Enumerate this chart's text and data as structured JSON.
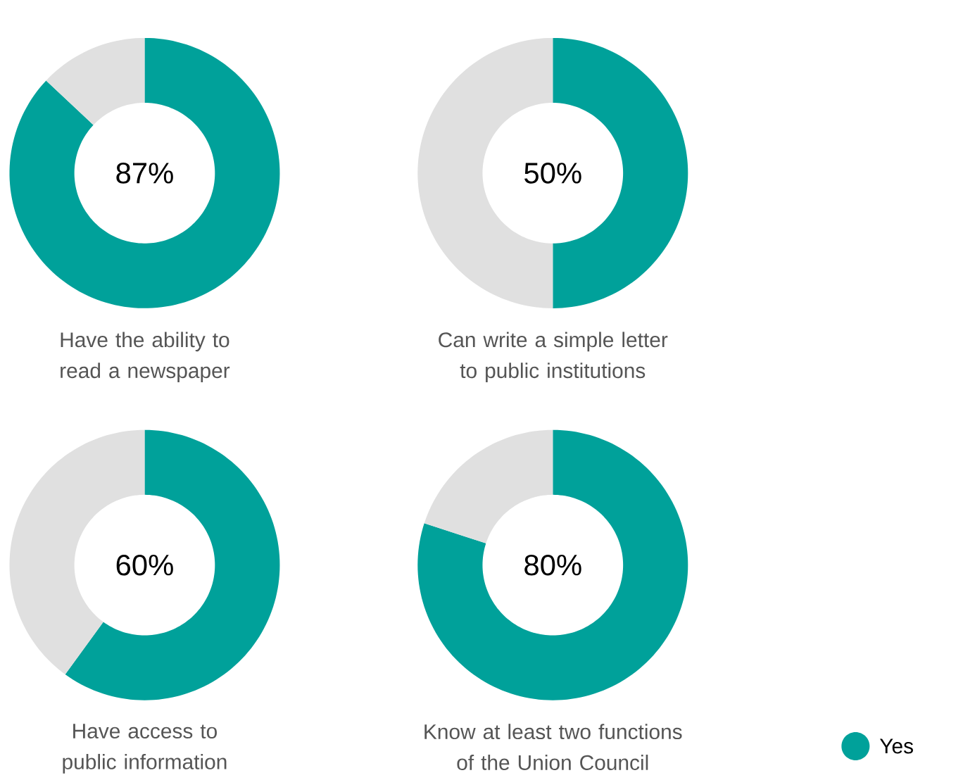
{
  "chart_data": [
    {
      "type": "donut",
      "title": "Have the ability to read a newspaper",
      "categories": [
        null,
        null
      ],
      "values": [
        87,
        13
      ],
      "colors": [
        "#00a19a",
        "#e0e0e0"
      ],
      "value_labels": [
        "87%",
        null
      ]
    },
    {
      "type": "donut",
      "title": "Can write a simple letter to public institutions",
      "categories": [
        null,
        null
      ],
      "values": [
        50,
        50
      ],
      "colors": [
        "#00a19a",
        "#e0e0e0"
      ],
      "value_labels": [
        "50%",
        null
      ]
    },
    {
      "type": "donut",
      "title": "Have access to public information",
      "categories": [
        null,
        null
      ],
      "values": [
        60,
        40
      ],
      "colors": [
        "#00a19a",
        "#e0e0e0"
      ],
      "value_labels": [
        "60%",
        null
      ]
    },
    {
      "type": "donut",
      "title": "Know at least two functions of the Union Council",
      "categories": [
        "Yes",
        null
      ],
      "values": [
        80,
        20
      ],
      "colors": [
        "#00a19a",
        "#e0e0e0"
      ],
      "value_labels": [
        "80%",
        null
      ],
      "legend": "bottom right"
    }
  ]
}
